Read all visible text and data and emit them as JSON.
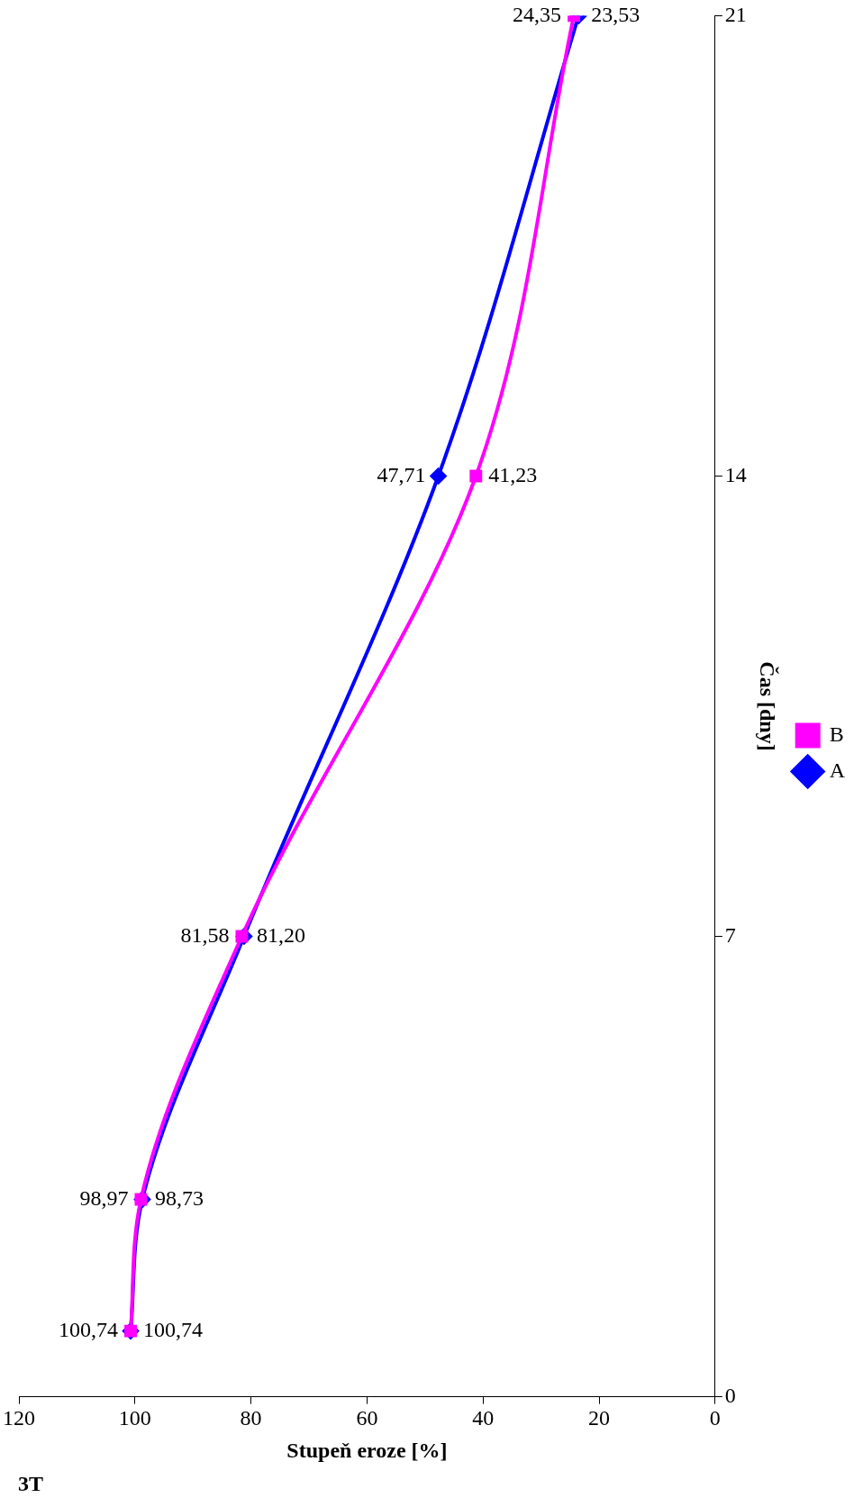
{
  "chart_data": {
    "type": "line",
    "title": "3T",
    "xlabel": "Stupeň eroze [%]",
    "ylabel": "Čas [dny]",
    "series": [
      {
        "name": "A",
        "color": "#0000ff",
        "marker": "diamond",
        "x": [
          100.74,
          98.73,
          81.2,
          47.71,
          23.53
        ],
        "values": [
          1,
          3,
          7,
          14,
          21
        ]
      },
      {
        "name": "B",
        "color": "#ff00ff",
        "marker": "square",
        "x": [
          100.74,
          98.97,
          81.58,
          41.23,
          24.35
        ],
        "values": [
          1,
          3,
          7,
          14,
          21
        ]
      }
    ],
    "annotations": [
      {
        "text": "100,74",
        "x": 100.74,
        "y": 1
      },
      {
        "text": "98,73",
        "x": 98.73,
        "y": 3
      },
      {
        "text": "81,20",
        "x": 81.2,
        "y": 7
      },
      {
        "text": "47,71",
        "x": 47.71,
        "y": 14
      },
      {
        "text": "23,53",
        "x": 23.53,
        "y": 21
      },
      {
        "text": "100,74",
        "x": 100.74,
        "y": 1
      },
      {
        "text": "98,97",
        "x": 98.97,
        "y": 3
      },
      {
        "text": "81,58",
        "x": 81.58,
        "y": 7
      },
      {
        "text": "41,23",
        "x": 41.23,
        "y": 14
      },
      {
        "text": "24,35",
        "x": 24.35,
        "y": 21
      }
    ],
    "xlim": [
      120,
      0
    ],
    "xticks": [
      120,
      100,
      80,
      60,
      40,
      20,
      0
    ],
    "ylim": [
      0,
      21
    ],
    "yticks": [
      0,
      7,
      14,
      21
    ],
    "grid": false,
    "legend": "right",
    "line_style": "solid"
  }
}
